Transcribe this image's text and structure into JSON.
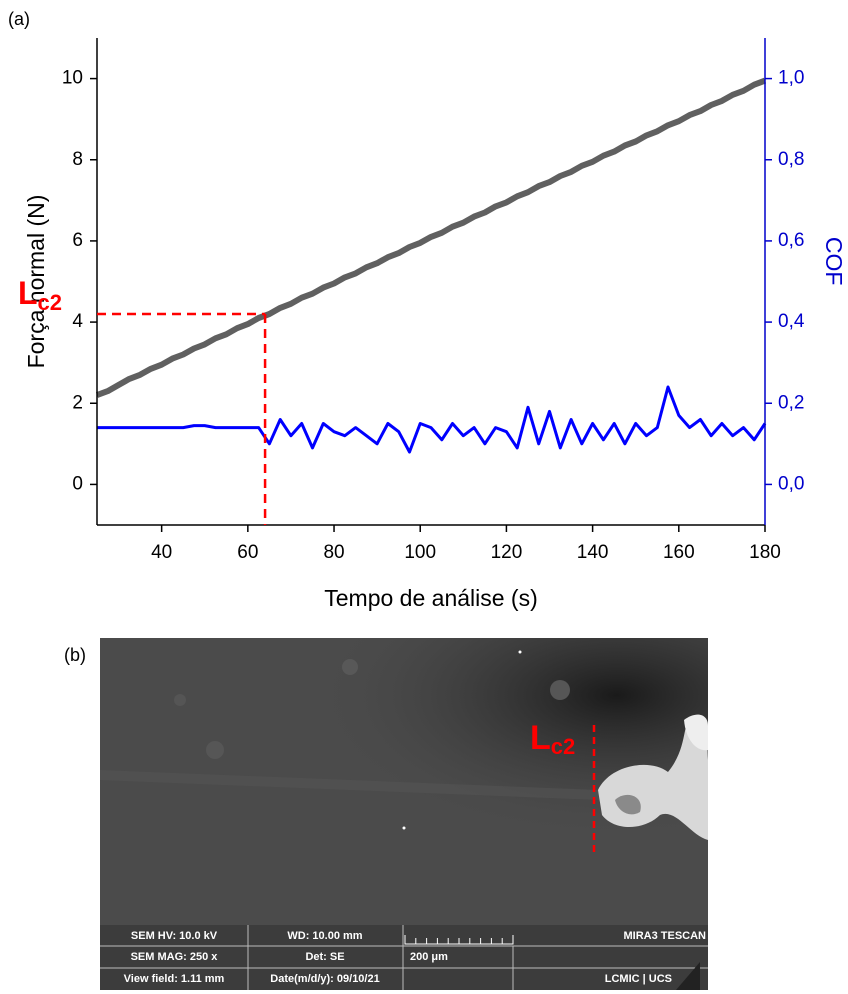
{
  "panel_labels": [
    "(a)",
    "(b)"
  ],
  "chart_data": {
    "type": "line",
    "xlabel": "Tempo de análise (s)",
    "ylabel": "Força normal (N)",
    "y2label": "COF",
    "x": [
      25,
      27.5,
      30,
      32.5,
      35,
      37.5,
      40,
      42.5,
      45,
      47.5,
      50,
      52.5,
      55,
      57.5,
      60,
      62.5,
      65,
      67.5,
      70,
      72.5,
      75,
      77.5,
      80,
      82.5,
      85,
      87.5,
      90,
      92.5,
      95,
      97.5,
      100,
      102.5,
      105,
      107.5,
      110,
      112.5,
      115,
      117.5,
      120,
      122.5,
      125,
      127.5,
      130,
      132.5,
      135,
      137.5,
      140,
      142.5,
      145,
      147.5,
      150,
      152.5,
      155,
      157.5,
      160,
      162.5,
      165,
      167.5,
      170,
      172.5,
      175,
      177.5,
      180
    ],
    "series": [
      {
        "color": "#444444",
        "values": [
          2.2,
          2.3,
          2.45,
          2.6,
          2.7,
          2.85,
          2.95,
          3.1,
          3.2,
          3.35,
          3.45,
          3.6,
          3.7,
          3.85,
          3.95,
          4.1,
          4.2,
          4.35,
          4.45,
          4.6,
          4.7,
          4.85,
          4.95,
          5.1,
          5.2,
          5.35,
          5.45,
          5.6,
          5.7,
          5.85,
          5.95,
          6.1,
          6.2,
          6.35,
          6.45,
          6.6,
          6.7,
          6.85,
          6.95,
          7.1,
          7.2,
          7.35,
          7.45,
          7.6,
          7.7,
          7.85,
          7.95,
          8.1,
          8.2,
          8.35,
          8.45,
          8.6,
          8.7,
          8.85,
          8.95,
          9.1,
          9.2,
          9.35,
          9.45,
          9.6,
          9.7,
          9.85,
          9.95
        ]
      },
      {
        "color": "#0000ff",
        "axis": "y2",
        "values": [
          0.14,
          0.14,
          0.14,
          0.14,
          0.14,
          0.14,
          0.14,
          0.14,
          0.14,
          0.145,
          0.145,
          0.14,
          0.14,
          0.14,
          0.14,
          0.14,
          0.1,
          0.16,
          0.12,
          0.15,
          0.09,
          0.15,
          0.13,
          0.12,
          0.14,
          0.12,
          0.1,
          0.15,
          0.13,
          0.08,
          0.15,
          0.14,
          0.11,
          0.15,
          0.12,
          0.14,
          0.1,
          0.14,
          0.13,
          0.09,
          0.19,
          0.1,
          0.18,
          0.09,
          0.16,
          0.1,
          0.15,
          0.11,
          0.15,
          0.1,
          0.15,
          0.12,
          0.14,
          0.24,
          0.17,
          0.14,
          0.16,
          0.12,
          0.15,
          0.12,
          0.14,
          0.11,
          0.15
        ]
      }
    ],
    "xlim": [
      25,
      180
    ],
    "xticks": [
      40,
      60,
      80,
      100,
      120,
      140,
      160,
      180
    ],
    "ylim": [
      -1,
      11
    ],
    "yticks": [
      0,
      2,
      4,
      6,
      8,
      10
    ],
    "y2lim": [
      -0.1,
      1.1
    ],
    "y2ticks": [
      {
        "value": 0,
        "label": "0,0"
      },
      {
        "value": 0.2,
        "label": "0,2"
      },
      {
        "value": 0.4,
        "label": "0,4"
      },
      {
        "value": 0.6,
        "label": "0,6"
      },
      {
        "value": 0.8,
        "label": "0,8"
      },
      {
        "value": 1.0,
        "label": "1,0"
      }
    ],
    "y2color": "#0000cc",
    "annotation": {
      "text": "L",
      "sub": "c2",
      "x": 64,
      "y": 4.2,
      "color": "#ff0000"
    }
  },
  "image": {
    "label": {
      "text": "L",
      "sub": "c2"
    },
    "info_rows": [
      [
        "SEM HV: 10.0 kV",
        "WD: 10.00 mm",
        "MIRA3 TESCAN"
      ],
      [
        "SEM MAG: 250 x",
        "Det: SE",
        "200 μm"
      ],
      [
        "View field: 1.11 mm",
        "Date(m/d/y): 09/10/21",
        "LCMIC | UCS"
      ]
    ]
  }
}
